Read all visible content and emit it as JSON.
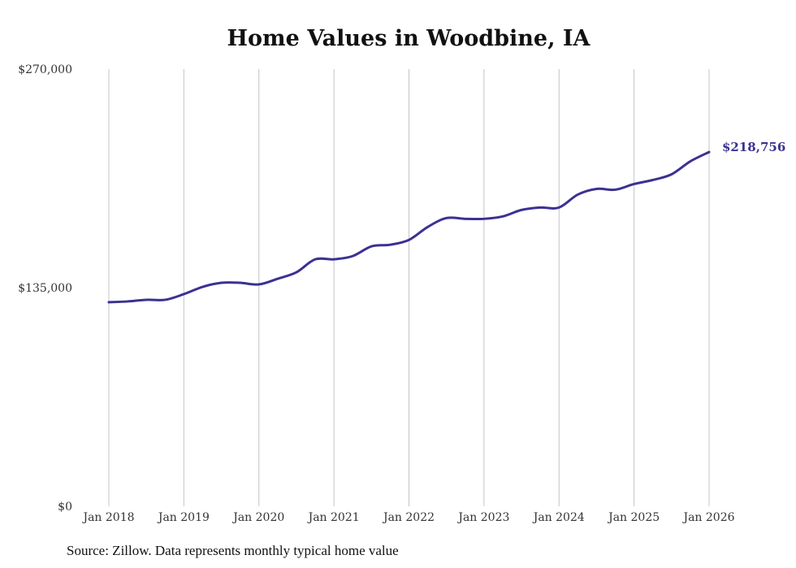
{
  "chart_data": {
    "type": "line",
    "title": "Home Values in Woodbine, IA",
    "xlabel": "",
    "ylabel": "",
    "ylim": [
      0,
      270000
    ],
    "y_ticks": [
      0,
      135000,
      270000
    ],
    "y_tick_labels": [
      "$0",
      "$135,000",
      "$270,000"
    ],
    "x_ticks": [
      2018,
      2019,
      2020,
      2021,
      2022,
      2023,
      2024,
      2025,
      2026
    ],
    "x_tick_labels": [
      "Jan 2018",
      "Jan 2019",
      "Jan 2020",
      "Jan 2021",
      "Jan 2022",
      "Jan 2023",
      "Jan 2024",
      "Jan 2025",
      "Jan 2026"
    ],
    "xlim": [
      2018,
      2026
    ],
    "grid": "vertical",
    "series": [
      {
        "name": "Typical home value",
        "color": "#3b3192",
        "x": [
          2018,
          2018.25,
          2018.5,
          2018.75,
          2019,
          2019.25,
          2019.5,
          2019.75,
          2020,
          2020.25,
          2020.5,
          2020.75,
          2021,
          2021.25,
          2021.5,
          2021.75,
          2022,
          2022.25,
          2022.5,
          2022.75,
          2023,
          2023.25,
          2023.5,
          2023.75,
          2024,
          2024.25,
          2024.5,
          2024.75,
          2025,
          2025.25,
          2025.5,
          2025.75,
          2026
        ],
        "values": [
          126000,
          126500,
          127500,
          127500,
          131000,
          135500,
          138000,
          138000,
          137000,
          140500,
          144500,
          152500,
          152500,
          154500,
          160500,
          161500,
          164500,
          172500,
          178000,
          177500,
          177500,
          179000,
          183000,
          184500,
          184500,
          192500,
          196000,
          195500,
          199000,
          201500,
          205000,
          213000,
          218756
        ]
      }
    ],
    "end_label": "$218,756",
    "source": "Source: Zillow. Data represents monthly typical home value"
  }
}
